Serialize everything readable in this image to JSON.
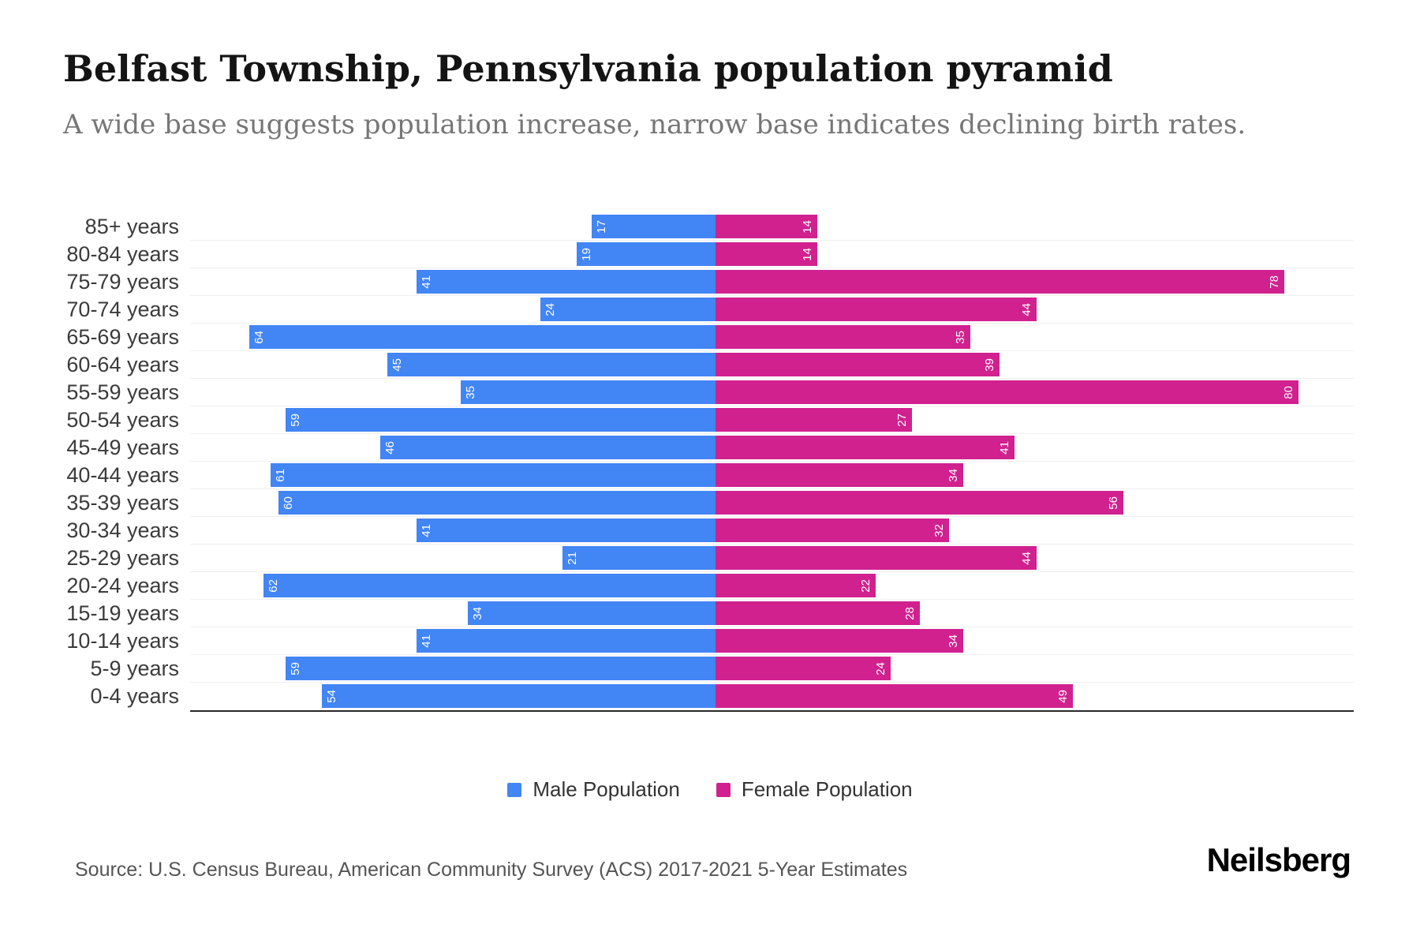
{
  "title": "Belfast Township, Pennsylvania population pyramid",
  "subtitle": "A wide base suggests population increase, narrow base indicates declining birth rates.",
  "legend": {
    "male": "Male Population",
    "female": "Female Population"
  },
  "source": "Source: U.S. Census Bureau, American Community Survey (ACS) 2017-2021 5-Year Estimates",
  "brand": "Neilsberg",
  "colors": {
    "male": "#4285F4",
    "female": "#D0218F"
  },
  "chart_data": {
    "type": "bar",
    "variant": "population-pyramid",
    "orientation": "horizontal",
    "title": "Belfast Township, Pennsylvania population pyramid",
    "categories": [
      "85+ years",
      "80-84 years",
      "75-79 years",
      "70-74 years",
      "65-69 years",
      "60-64 years",
      "55-59 years",
      "50-54 years",
      "45-49 years",
      "40-44 years",
      "35-39 years",
      "30-34 years",
      "25-29 years",
      "20-24 years",
      "15-19 years",
      "10-14 years",
      "5-9 years",
      "0-4 years"
    ],
    "series": [
      {
        "name": "Male Population",
        "side": "left",
        "values": [
          17,
          19,
          41,
          24,
          64,
          45,
          35,
          59,
          46,
          61,
          60,
          41,
          21,
          62,
          34,
          41,
          59,
          54
        ]
      },
      {
        "name": "Female Population",
        "side": "right",
        "values": [
          14,
          14,
          78,
          44,
          35,
          39,
          80,
          27,
          41,
          34,
          56,
          32,
          44,
          22,
          28,
          34,
          24,
          49
        ]
      }
    ],
    "left_axis_max": 72,
    "right_axis_max": 88,
    "grid": "horizontal-light",
    "bar_value_labels": "inside-end-rotated",
    "legend_position": "bottom-center"
  }
}
